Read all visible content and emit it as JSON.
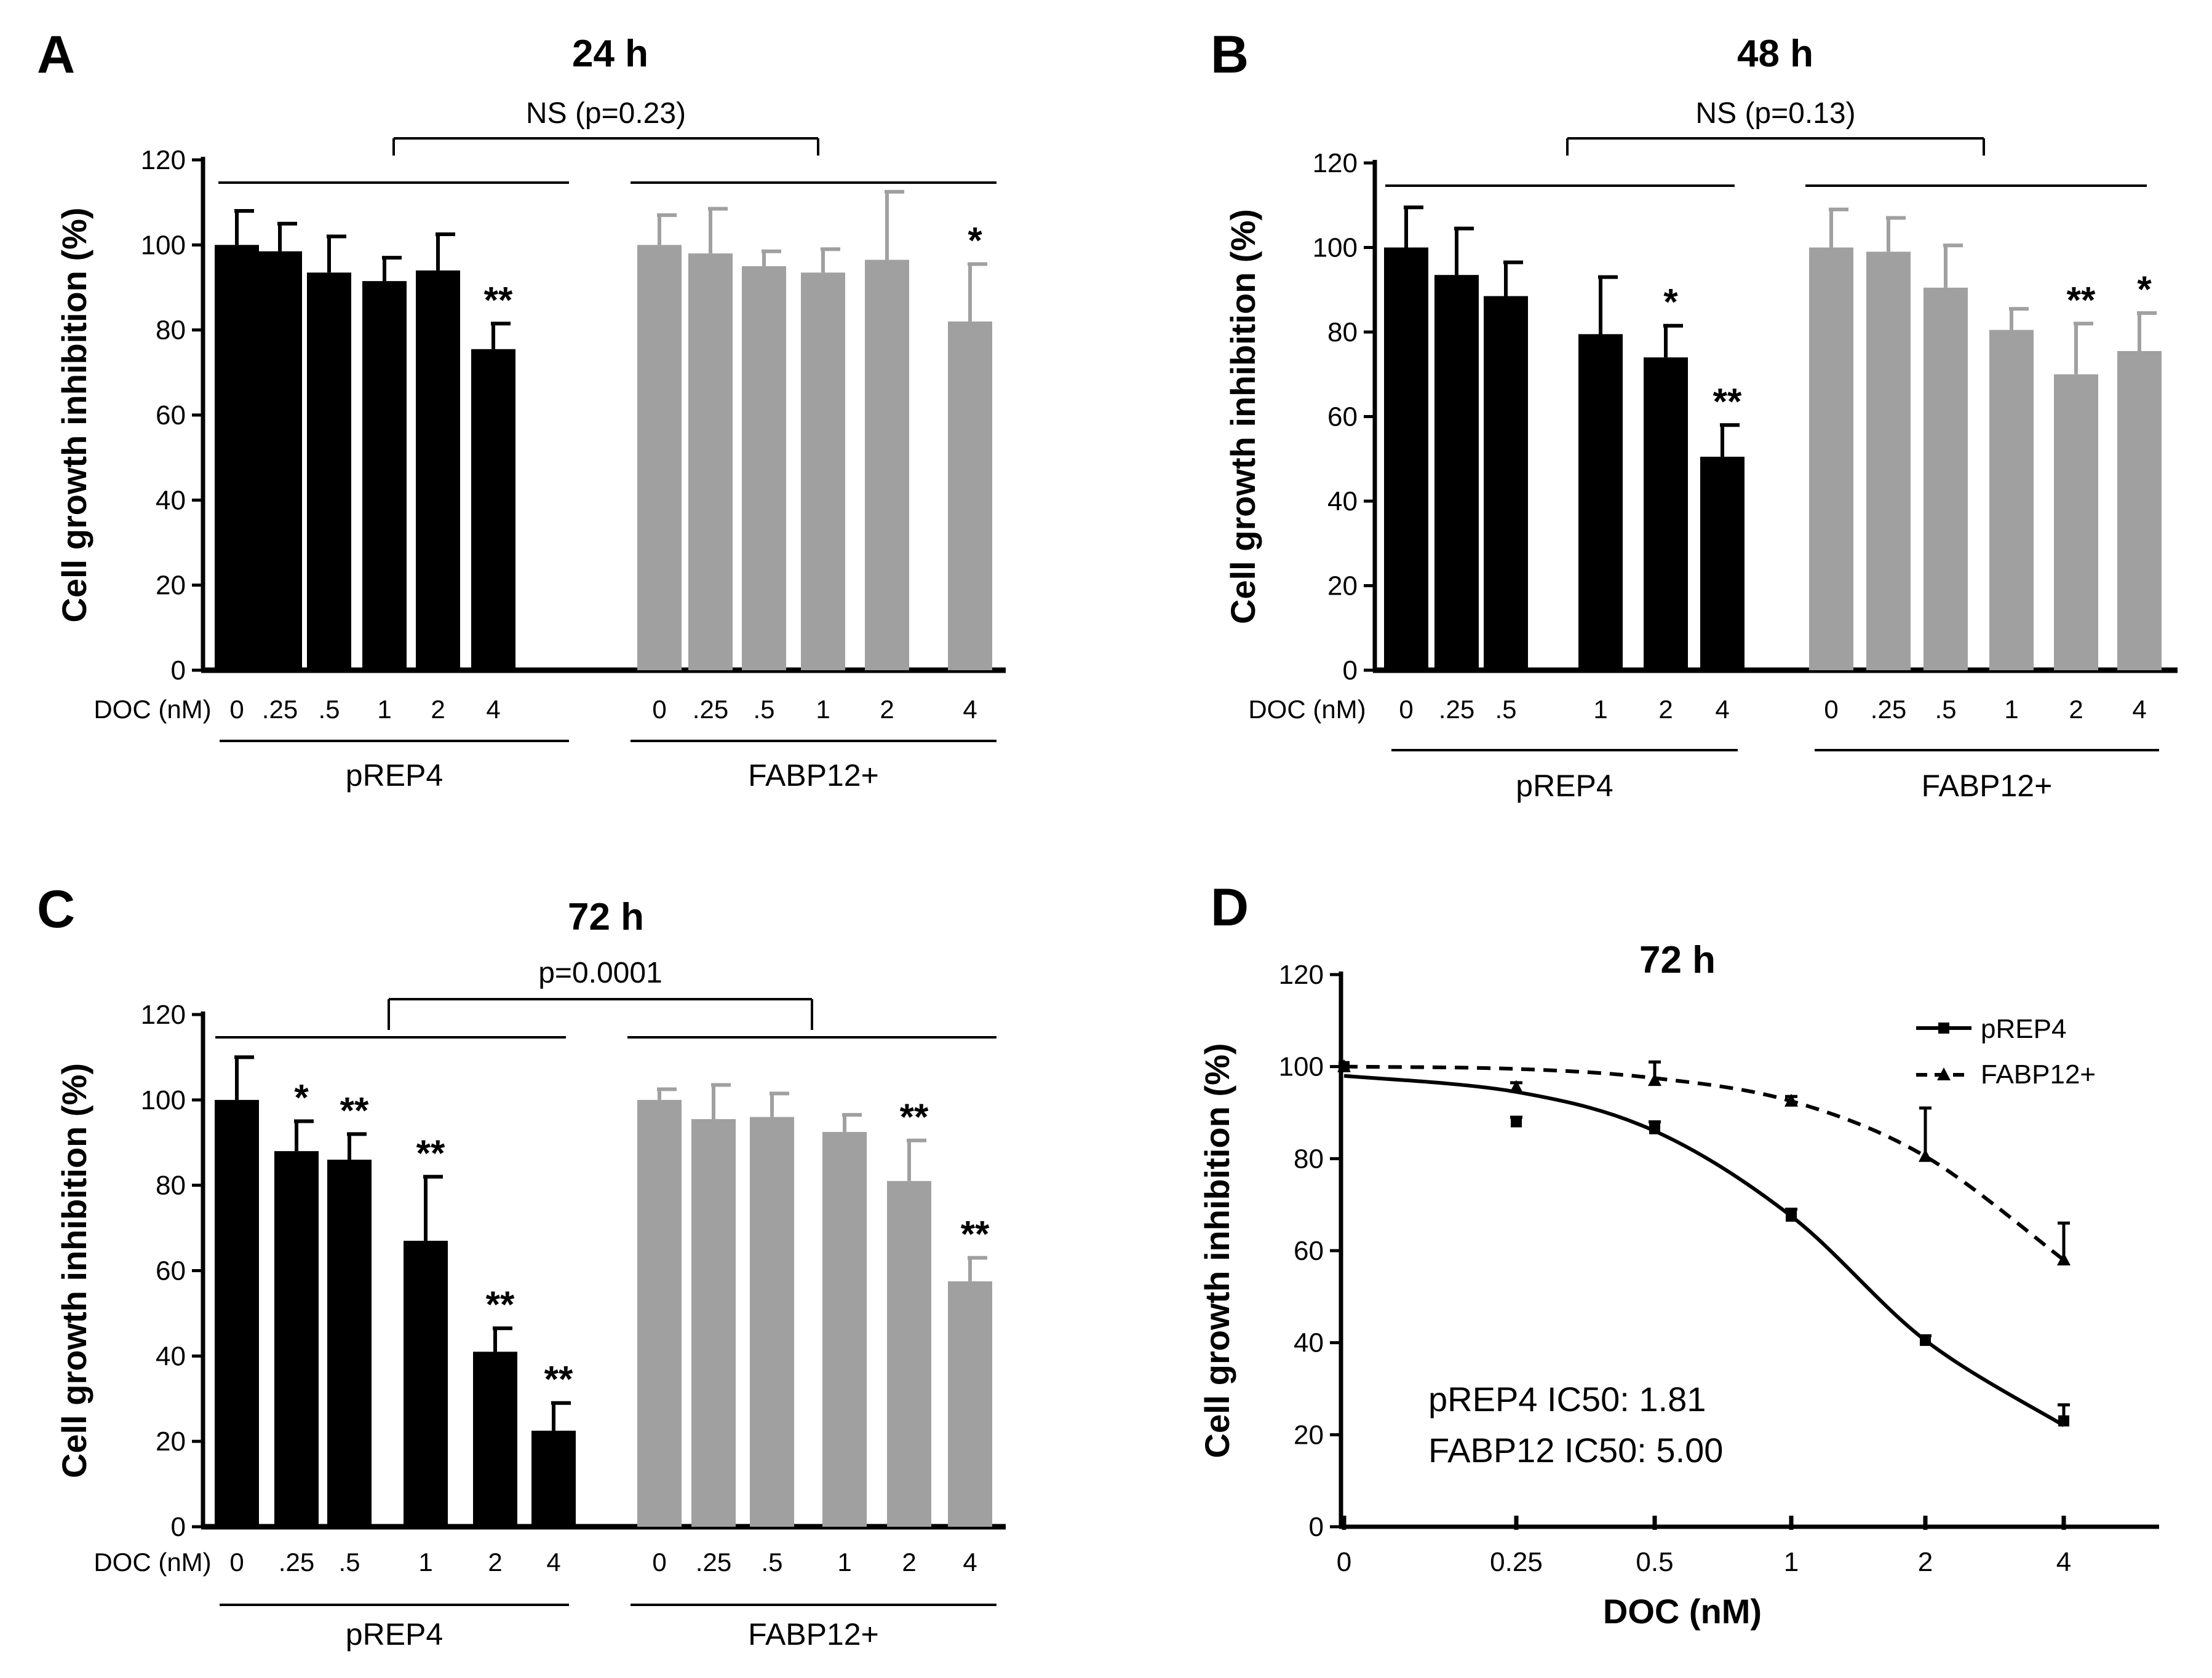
{
  "chart_data": [
    {
      "panel": "A",
      "type": "bar",
      "title": "24 h",
      "ylabel": "Cell growth inhibition (%)",
      "ylim": [
        0,
        120
      ],
      "yticks": [
        0,
        20,
        40,
        60,
        80,
        100,
        120
      ],
      "dose_label": "DOC (nM)",
      "comparison": "NS (p=0.23)",
      "groups": [
        {
          "name": "pREP4",
          "color": "#000000",
          "categories": [
            "0",
            ".25",
            ".5",
            "1",
            "2",
            "4"
          ],
          "values": [
            100,
            98.5,
            93.5,
            91.5,
            94,
            75.5
          ],
          "errors": [
            8,
            6.5,
            8.5,
            5.5,
            8.5,
            6
          ],
          "significance": [
            "",
            "",
            "",
            "",
            "",
            "**"
          ]
        },
        {
          "name": "FABP12+",
          "color": "#a0a0a0",
          "categories": [
            "0",
            ".25",
            ".5",
            "1",
            "2",
            "4"
          ],
          "values": [
            100,
            98,
            95,
            93.5,
            96.5,
            82
          ],
          "errors": [
            7,
            10.5,
            3.5,
            5.5,
            16,
            13.5
          ],
          "significance": [
            "",
            "",
            "",
            "",
            "",
            "*"
          ]
        }
      ]
    },
    {
      "panel": "B",
      "type": "bar",
      "title": "48 h",
      "ylabel": "Cell growth inhibition (%)",
      "ylim": [
        0,
        120
      ],
      "yticks": [
        0,
        20,
        40,
        60,
        80,
        100,
        120
      ],
      "dose_label": "DOC (nM)",
      "comparison": "NS (p=0.13)",
      "groups": [
        {
          "name": "pREP4",
          "color": "#000000",
          "categories": [
            "0",
            ".25",
            ".5",
            "1",
            "2",
            "4"
          ],
          "values": [
            100,
            93.5,
            88.5,
            79.5,
            74,
            50.5
          ],
          "errors": [
            9.5,
            11,
            8,
            13.5,
            7.5,
            7.5
          ],
          "significance": [
            "",
            "",
            "",
            "",
            "*",
            "**"
          ]
        },
        {
          "name": "FABP12+",
          "color": "#a0a0a0",
          "categories": [
            "0",
            ".25",
            ".5",
            "1",
            "2",
            "4"
          ],
          "values": [
            100,
            99,
            90.5,
            80.5,
            70,
            75.5
          ],
          "errors": [
            9,
            8,
            10,
            5,
            12,
            9
          ],
          "significance": [
            "",
            "",
            "",
            "",
            "**",
            "*"
          ]
        }
      ]
    },
    {
      "panel": "C",
      "type": "bar",
      "title": "72 h",
      "ylabel": "Cell growth inhibition (%)",
      "ylim": [
        0,
        120
      ],
      "yticks": [
        0,
        20,
        40,
        60,
        80,
        100,
        120
      ],
      "dose_label": "DOC (nM)",
      "comparison": "p=0.0001",
      "groups": [
        {
          "name": "pREP4",
          "color": "#000000",
          "categories": [
            "0",
            ".25",
            ".5",
            "1",
            "2",
            "4"
          ],
          "values": [
            100,
            88,
            86,
            67,
            41,
            22.5
          ],
          "errors": [
            10,
            7,
            6,
            15,
            5.5,
            6.5
          ],
          "significance": [
            "",
            "*",
            "**",
            "**",
            "**",
            "**"
          ]
        },
        {
          "name": "FABP12+",
          "color": "#a0a0a0",
          "categories": [
            "0",
            ".25",
            ".5",
            "1",
            "2",
            "4"
          ],
          "values": [
            100,
            95.5,
            96,
            92.5,
            81,
            57.5
          ],
          "errors": [
            2.5,
            8,
            5.5,
            4,
            9.5,
            5.5
          ],
          "significance": [
            "",
            "",
            "",
            "",
            "**",
            "**"
          ]
        }
      ]
    },
    {
      "panel": "D",
      "type": "line",
      "title": "72 h",
      "xlabel": "DOC (nM)",
      "ylabel": "Cell growth inhibition (%)",
      "ylim": [
        0,
        120
      ],
      "yticks": [
        0,
        20,
        40,
        60,
        80,
        100,
        120
      ],
      "x_categories": [
        "0",
        "0.25",
        "0.5",
        "1",
        "2",
        "4"
      ],
      "series": [
        {
          "name": "pREP4",
          "style": "solid",
          "marker": "square",
          "x": [
            0,
            0.25,
            0.5,
            1,
            2,
            4
          ],
          "points": [
            100,
            88,
            86.5,
            67.5,
            40.5,
            23
          ],
          "errors": [
            0,
            1,
            1.5,
            1.5,
            1,
            3.5
          ],
          "fit": [
            98,
            94.5,
            86,
            67.5,
            40.5,
            22
          ]
        },
        {
          "name": "FABP12+",
          "style": "dashed",
          "marker": "triangle",
          "x": [
            0,
            0.25,
            0.5,
            1,
            2,
            4
          ],
          "points": [
            100,
            95.5,
            97,
            92.5,
            80.5,
            58
          ],
          "errors": [
            0,
            1,
            4,
            1,
            10.5,
            8
          ],
          "fit": [
            100,
            99.5,
            97.5,
            92.5,
            80.5,
            58
          ]
        }
      ],
      "annotations": [
        "pREP4 IC50: 1.81",
        "FABP12 IC50: 5.00"
      ]
    }
  ]
}
